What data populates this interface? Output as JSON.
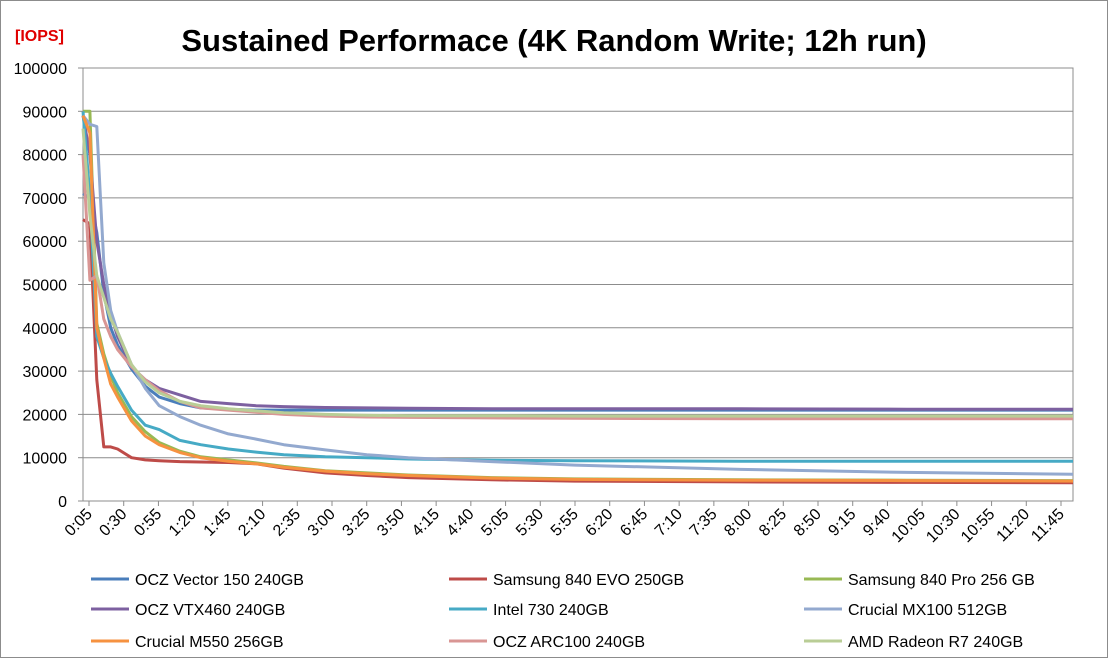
{
  "chart_data": {
    "type": "line",
    "title": "Sustained Performace (4K Random Write; 12h run)",
    "ylabel": "[IOPS]",
    "xlabel": "",
    "ylim": [
      0,
      100000
    ],
    "yticks": [
      "0",
      "10000",
      "20000",
      "30000",
      "40000",
      "50000",
      "60000",
      "70000",
      "80000",
      "90000",
      "100000"
    ],
    "xticks": [
      "0:05",
      "0:30",
      "0:55",
      "1:20",
      "1:45",
      "2:10",
      "2:35",
      "3:00",
      "3:25",
      "3:50",
      "4:15",
      "4:40",
      "5:05",
      "5:30",
      "5:55",
      "6:20",
      "6:45",
      "7:10",
      "7:35",
      "8:00",
      "8:25",
      "8:50",
      "9:15",
      "9:40",
      "10:05",
      "10:30",
      "10:55",
      "11:20",
      "11:45"
    ],
    "x_minutes": [
      5,
      10,
      15,
      20,
      25,
      30,
      40,
      50,
      60,
      75,
      90,
      110,
      130,
      150,
      180,
      210,
      240,
      300,
      360,
      480,
      600,
      720
    ],
    "grid": true,
    "legend_position": "bottom",
    "series": [
      {
        "name": "OCZ Vector 150 240GB",
        "color": "#4a7ebb",
        "values": [
          71000,
          70000,
          62000,
          48000,
          40000,
          36000,
          30500,
          26500,
          24000,
          22500,
          21500,
          21200,
          21000,
          21000,
          21000,
          21000,
          21000,
          21000,
          21000,
          21000,
          21000,
          21000
        ]
      },
      {
        "name": "Samsung 840 EVO 250GB",
        "color": "#be4b48",
        "values": [
          65000,
          64000,
          28000,
          12500,
          12500,
          12000,
          10000,
          9500,
          9300,
          9100,
          9000,
          8900,
          8600,
          7600,
          6500,
          5900,
          5400,
          4900,
          4600,
          4400,
          4300,
          4200
        ]
      },
      {
        "name": "Samsung 840 Pro 256 GB",
        "color": "#98b954",
        "values": [
          90000,
          90000,
          41000,
          34000,
          29000,
          25000,
          19500,
          16000,
          13500,
          11500,
          10200,
          9500,
          8800,
          8000,
          7000,
          6500,
          6000,
          5400,
          5100,
          4900,
          4800,
          4700
        ]
      },
      {
        "name": "OCZ VTX460 240GB",
        "color": "#7d60a0",
        "values": [
          89000,
          80000,
          60000,
          50000,
          43000,
          38000,
          31000,
          28000,
          26000,
          24500,
          23000,
          22500,
          22000,
          21800,
          21600,
          21500,
          21400,
          21300,
          21300,
          21300,
          21200,
          21200
        ]
      },
      {
        "name": "Intel 730 240GB",
        "color": "#46aac5",
        "values": [
          90000,
          70500,
          38000,
          33000,
          29500,
          26500,
          21000,
          17500,
          16500,
          14000,
          13000,
          12000,
          11300,
          10700,
          10200,
          10000,
          9700,
          9400,
          9300,
          9200,
          9200,
          9200
        ]
      },
      {
        "name": "Crucial MX100 512GB",
        "color": "#93a9cf",
        "values": [
          89000,
          87000,
          86500,
          55000,
          44000,
          39000,
          31500,
          26000,
          22000,
          19500,
          17500,
          15500,
          14300,
          13000,
          11800,
          10700,
          10000,
          9100,
          8300,
          7300,
          6600,
          6200
        ]
      },
      {
        "name": "Crucial M550 256GB",
        "color": "#f69240",
        "values": [
          89000,
          85000,
          40000,
          33000,
          27000,
          24000,
          18500,
          15000,
          13000,
          11200,
          10000,
          9200,
          8600,
          7800,
          6900,
          6300,
          5900,
          5300,
          5000,
          4800,
          4700,
          4600
        ]
      },
      {
        "name": "OCZ  ARC100 240GB",
        "color": "#d99694",
        "values": [
          80000,
          51000,
          52000,
          42000,
          38000,
          35000,
          31000,
          28000,
          25500,
          23000,
          21500,
          21000,
          20500,
          20000,
          19600,
          19400,
          19300,
          19200,
          19100,
          19000,
          19000,
          19000
        ]
      },
      {
        "name": "AMD Radeon R7 240GB",
        "color": "#b9cd96",
        "values": [
          86000,
          66000,
          52000,
          47000,
          42000,
          39000,
          31500,
          27500,
          25000,
          23000,
          22000,
          21300,
          20800,
          20400,
          20000,
          19800,
          19700,
          19700,
          19600,
          19600,
          19600,
          19600
        ]
      }
    ]
  }
}
